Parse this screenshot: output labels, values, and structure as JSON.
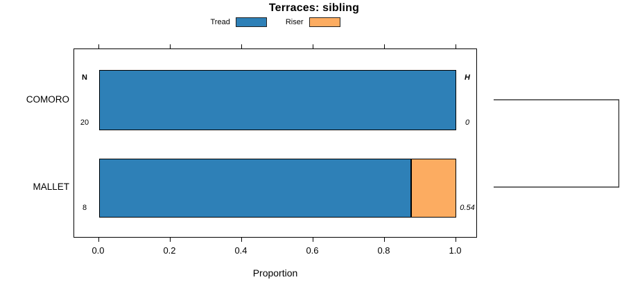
{
  "title": "Terraces: sibling",
  "chart_data": {
    "type": "bar",
    "orientation": "horizontal",
    "stacked": true,
    "title": "Terraces: sibling",
    "xlabel": "Proportion",
    "xlim": [
      0,
      1
    ],
    "x_ticks": [
      "0.0",
      "0.2",
      "0.4",
      "0.6",
      "0.8",
      "1.0"
    ],
    "grid": false,
    "legend_position": "top",
    "categories": [
      "COMORO",
      "MALLET"
    ],
    "series": [
      {
        "name": "Tread",
        "color": "#2e80b7",
        "values": [
          1.0,
          0.875
        ]
      },
      {
        "name": "Riser",
        "color": "#fcac61",
        "values": [
          0.0,
          0.125
        ]
      }
    ],
    "row_annotations": {
      "left_header": "N",
      "left_values": [
        "20",
        "8"
      ],
      "right_header": "H",
      "right_values": [
        "0",
        "0.54"
      ]
    },
    "dendrogram": {
      "side": "right",
      "joins": [
        [
          "COMORO",
          "MALLET"
        ]
      ]
    }
  }
}
